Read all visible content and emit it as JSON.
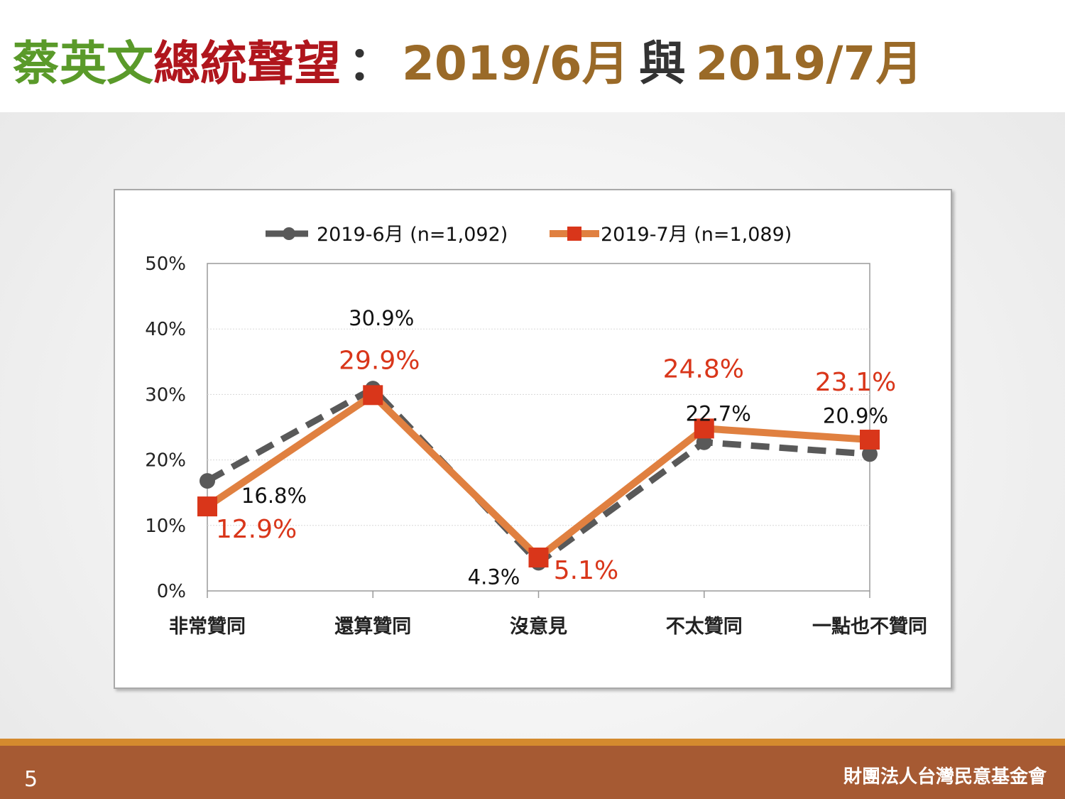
{
  "header": {
    "title_part1": "蔡英文",
    "title_part2": "總統聲望",
    "title_colon": "：",
    "title_date1": "2019/6月",
    "title_conj": "與",
    "title_date2": "2019/7月"
  },
  "footer": {
    "page_number": "5",
    "org_name": "財團法人台灣民意基金會"
  },
  "colors": {
    "series_june": "#595959",
    "series_july_line": "#e08040",
    "series_july_marker": "#d9361a",
    "label_july": "#d9361a",
    "title_green": "#5a9a2a",
    "title_red": "#b0161d",
    "title_gold": "#9a6a28"
  },
  "chart_data": {
    "type": "line",
    "categories": [
      "非常贊同",
      "還算贊同",
      "沒意見",
      "不太贊同",
      "一點也不贊同"
    ],
    "y_ticks": [
      "0%",
      "10%",
      "20%",
      "30%",
      "40%",
      "50%"
    ],
    "ylim": [
      0,
      50
    ],
    "grid": true,
    "legend_position": "top",
    "series": [
      {
        "name": "2019-6月 (n=1,092)",
        "values": [
          16.8,
          30.9,
          4.3,
          22.7,
          20.9
        ],
        "labels": [
          "16.8%",
          "30.9%",
          "4.3%",
          "22.7%",
          "20.9%"
        ],
        "style": "dashed",
        "marker": "circle"
      },
      {
        "name": "2019-7月 (n=1,089)",
        "values": [
          12.9,
          29.9,
          5.1,
          24.8,
          23.1
        ],
        "labels": [
          "12.9%",
          "29.9%",
          "5.1%",
          "24.8%",
          "23.1%"
        ],
        "style": "solid",
        "marker": "square"
      }
    ]
  }
}
